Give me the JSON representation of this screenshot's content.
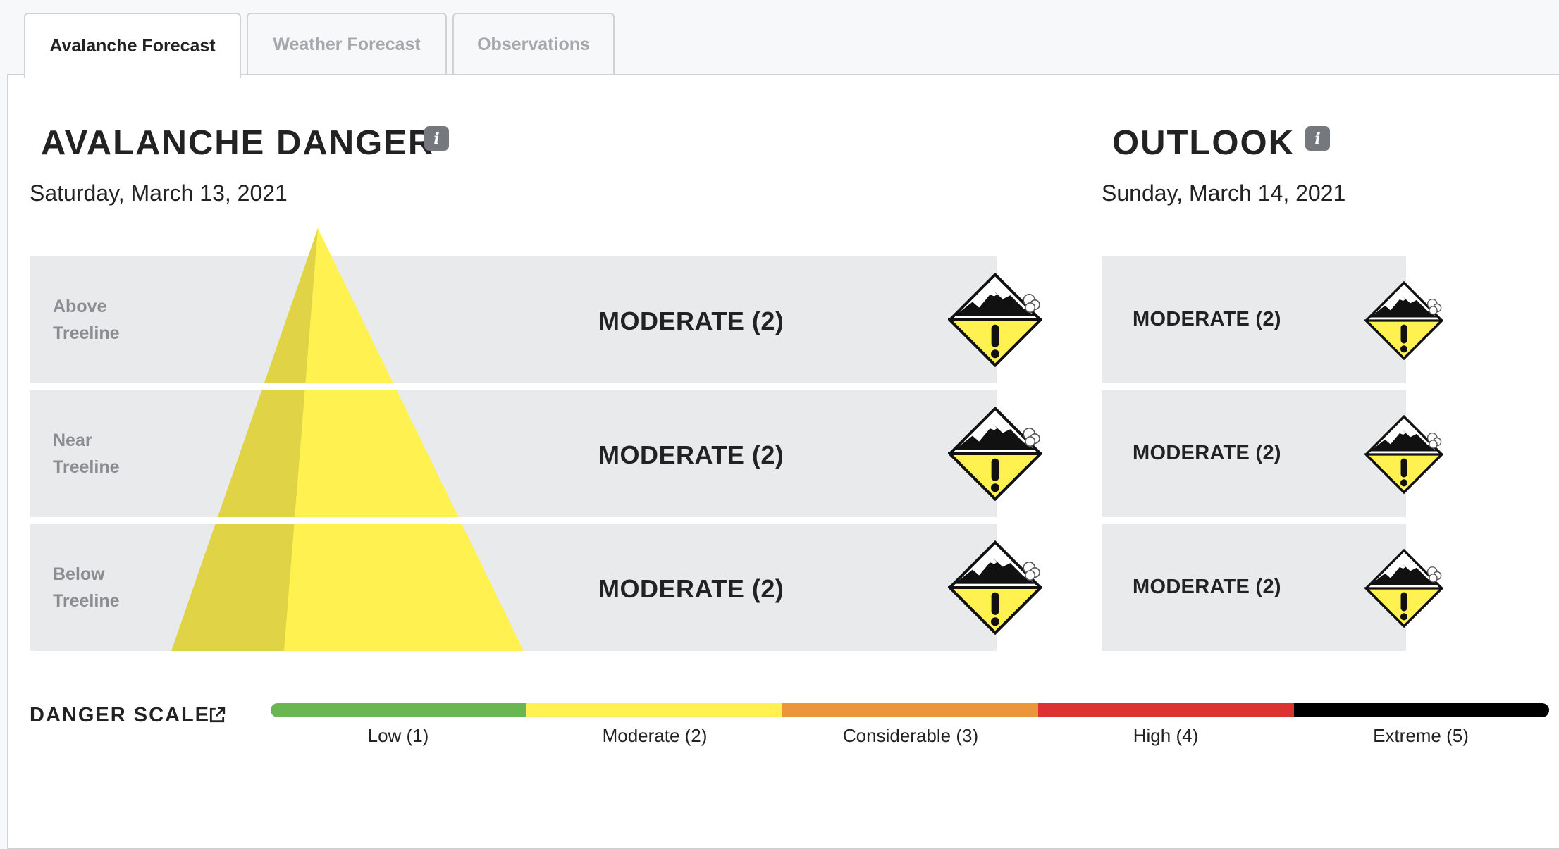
{
  "tabs": [
    {
      "label": "Avalanche Forecast",
      "active": true
    },
    {
      "label": "Weather Forecast",
      "active": false
    },
    {
      "label": "Observations",
      "active": false
    }
  ],
  "danger": {
    "title": "AVALANCHE DANGER",
    "info_icon": "i",
    "date": "Saturday, March 13, 2021",
    "pyramid_color": "#fff250",
    "rows": [
      {
        "elevation_line1": "Above",
        "elevation_line2": "Treeline",
        "rating": "MODERATE (2)",
        "icon": "moderate-danger-icon"
      },
      {
        "elevation_line1": "Near",
        "elevation_line2": "Treeline",
        "rating": "MODERATE (2)",
        "icon": "moderate-danger-icon"
      },
      {
        "elevation_line1": "Below",
        "elevation_line2": "Treeline",
        "rating": "MODERATE (2)",
        "icon": "moderate-danger-icon"
      }
    ]
  },
  "outlook": {
    "title": "OUTLOOK",
    "info_icon": "i",
    "date": "Sunday, March 14, 2021",
    "rows": [
      {
        "rating": "MODERATE (2)",
        "icon": "moderate-danger-icon"
      },
      {
        "rating": "MODERATE (2)",
        "icon": "moderate-danger-icon"
      },
      {
        "rating": "MODERATE (2)",
        "icon": "moderate-danger-icon"
      }
    ]
  },
  "danger_scale": {
    "title": "DANGER SCALE",
    "icon": "external-link-icon",
    "levels": [
      {
        "label": "Low (1)",
        "color": "#6ab651"
      },
      {
        "label": "Moderate (2)",
        "color": "#fff250"
      },
      {
        "label": "Considerable (3)",
        "color": "#eb963a"
      },
      {
        "label": "High (4)",
        "color": "#dc3330"
      },
      {
        "label": "Extreme (5)",
        "color": "#000000"
      }
    ]
  }
}
